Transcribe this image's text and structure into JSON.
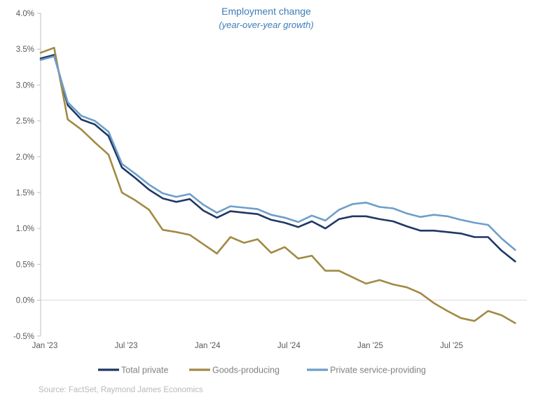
{
  "chart": {
    "title": "Employment change",
    "subtitle": "(year-over-year growth)",
    "source": "Source: FactSet, Raymond James Economics"
  },
  "chart_data": {
    "type": "line",
    "title": "Employment change",
    "subtitle": "(year-over-year growth)",
    "unit": "%",
    "x": [
      "Jan '23",
      "Feb '23",
      "Mar '23",
      "Apr '23",
      "May '23",
      "Jun '23",
      "Jul '23",
      "Aug '23",
      "Sep '23",
      "Oct '23",
      "Nov '23",
      "Dec '23",
      "Jan '24",
      "Feb '24",
      "Mar '24",
      "Apr '24",
      "May '24",
      "Jun '24",
      "Jul '24",
      "Aug '24",
      "Sep '24",
      "Oct '24",
      "Nov '24",
      "Dec '24",
      "Jan '25",
      "Feb '25",
      "Mar '25",
      "Apr '25",
      "May '25",
      "Jun '25",
      "Jul '25",
      "Aug '25",
      "Sep '25",
      "Oct '25",
      "Nov '25",
      "Dec '25"
    ],
    "x_tick_indices": [
      0,
      6,
      12,
      18,
      24,
      30
    ],
    "x_tick_labels": [
      "Jan '23",
      "Jul '23",
      "Jan '24",
      "Jul '24",
      "Jan '25",
      "Jul '25"
    ],
    "y_ticks": [
      4.0,
      3.5,
      3.0,
      2.5,
      2.0,
      1.5,
      1.0,
      0.5,
      0.0,
      -0.5
    ],
    "y_tick_labels": [
      "4.0%",
      "3.5%",
      "3.0%",
      "2.5%",
      "2.0%",
      "1.5%",
      "1.0%",
      "0.5%",
      "0.0%",
      "-0.5%"
    ],
    "ylim": [
      -0.5,
      4.0
    ],
    "grid": "zero-line-only",
    "legend_position": "bottom",
    "series": [
      {
        "name": "Total private",
        "color": "#1f3864",
        "values": [
          3.37,
          3.42,
          2.72,
          2.52,
          2.45,
          2.29,
          1.85,
          1.7,
          1.54,
          1.42,
          1.37,
          1.41,
          1.25,
          1.15,
          1.24,
          1.22,
          1.2,
          1.12,
          1.08,
          1.02,
          1.1,
          1.0,
          1.13,
          1.17,
          1.17,
          1.13,
          1.1,
          1.03,
          0.97,
          0.97,
          0.95,
          0.93,
          0.88,
          0.88,
          0.69,
          0.54
        ]
      },
      {
        "name": "Goods-producing",
        "color": "#a18a44",
        "values": [
          3.45,
          3.52,
          2.52,
          2.38,
          2.2,
          2.03,
          1.5,
          1.39,
          1.26,
          0.98,
          0.95,
          0.91,
          0.78,
          0.65,
          0.88,
          0.8,
          0.85,
          0.66,
          0.74,
          0.58,
          0.62,
          0.41,
          0.41,
          0.32,
          0.23,
          0.28,
          0.22,
          0.18,
          0.1,
          -0.04,
          -0.15,
          -0.25,
          -0.29,
          -0.15,
          -0.21,
          -0.32
        ]
      },
      {
        "name": "Private service-providing",
        "color": "#6d9ec9",
        "values": [
          3.35,
          3.4,
          2.76,
          2.57,
          2.5,
          2.35,
          1.9,
          1.76,
          1.61,
          1.49,
          1.44,
          1.48,
          1.33,
          1.22,
          1.31,
          1.29,
          1.27,
          1.19,
          1.15,
          1.09,
          1.18,
          1.11,
          1.26,
          1.34,
          1.36,
          1.3,
          1.28,
          1.21,
          1.16,
          1.19,
          1.17,
          1.12,
          1.08,
          1.05,
          0.86,
          0.7
        ]
      }
    ]
  },
  "style_colors": {
    "title_blue": "#3e7cb9",
    "axis_text_gray": "#595959",
    "legend_text_gray": "#808080",
    "source_text_gray": "#b9b9b9",
    "axis_line_gray": "#bfbfbf",
    "zero_gridline_gray": "#d9d9d9",
    "background": "#ffffff"
  }
}
